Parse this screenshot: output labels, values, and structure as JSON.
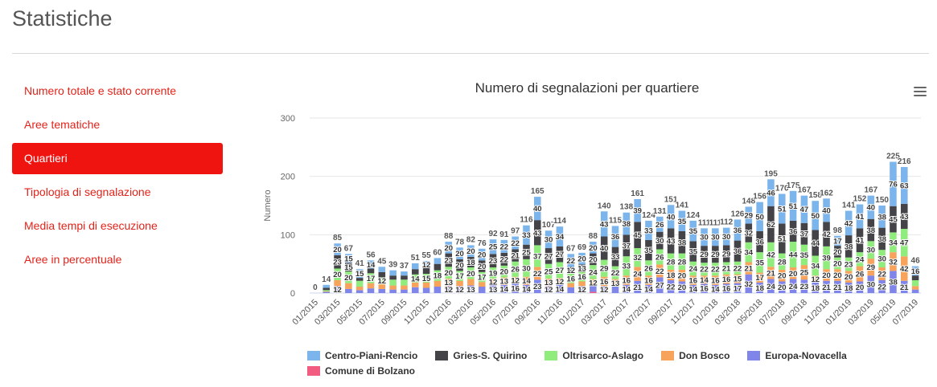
{
  "page": {
    "title": "Statistiche"
  },
  "sidebar": {
    "items": [
      {
        "label": "Numero totale e stato corrente",
        "active": false
      },
      {
        "label": "Aree tematiche",
        "active": false
      },
      {
        "label": "Quartieri",
        "active": true
      },
      {
        "label": "Tipologia di segnalazione",
        "active": false
      },
      {
        "label": "Media tempi di esecuzione",
        "active": false
      },
      {
        "label": "Aree in percentuale",
        "active": false
      }
    ]
  },
  "colors": {
    "accent": "#e2231a",
    "active_bg": "#f01411",
    "series": [
      "#7cb5ec",
      "#434348",
      "#90ed7d",
      "#f7a35c",
      "#8085e9",
      "#f15c80"
    ]
  },
  "chart_data": {
    "type": "bar",
    "stacked": true,
    "title": "Numero di segnalazioni per quartiere",
    "ylabel": "Numero",
    "xlabel": "",
    "ylim": [
      0,
      300
    ],
    "yticks": [
      0,
      100,
      200,
      300
    ],
    "grid": true,
    "legend": "bottom",
    "menu_icon": "hamburger-menu-icon",
    "categories": [
      "01/2015",
      "02/2015",
      "03/2015",
      "04/2015",
      "05/2015",
      "06/2015",
      "07/2015",
      "08/2015",
      "09/2015",
      "10/2015",
      "11/2015",
      "12/2015",
      "01/2016",
      "02/2016",
      "03/2016",
      "04/2016",
      "05/2016",
      "06/2016",
      "07/2016",
      "08/2016",
      "09/2016",
      "10/2016",
      "11/2016",
      "12/2016",
      "01/2017",
      "02/2017",
      "03/2017",
      "04/2017",
      "05/2017",
      "06/2017",
      "07/2017",
      "08/2017",
      "09/2017",
      "10/2017",
      "11/2017",
      "12/2017",
      "01/2018",
      "02/2018",
      "03/2018",
      "04/2018",
      "05/2018",
      "06/2018",
      "07/2018",
      "08/2018",
      "09/2018",
      "10/2018",
      "11/2018",
      "12/2018",
      "01/2019",
      "02/2019",
      "03/2019",
      "04/2019",
      "05/2019",
      "06/2019",
      "07/2019"
    ],
    "xtick_labels": [
      "01/2015",
      "03/2015",
      "05/2015",
      "07/2015",
      "09/2015",
      "11/2015",
      "01/2016",
      "03/2016",
      "05/2016",
      "07/2016",
      "09/2016",
      "11/2016",
      "01/2017",
      "03/2017",
      "05/2017",
      "07/2017",
      "09/2017",
      "11/2017",
      "01/2018",
      "03/2018",
      "05/2018",
      "07/2018",
      "09/2018",
      "11/2018",
      "01/2019",
      "03/2019",
      "05/2019",
      "07/2019"
    ],
    "totals": [
      0,
      14,
      85,
      67,
      41,
      56,
      45,
      39,
      37,
      51,
      55,
      60,
      88,
      78,
      82,
      76,
      92,
      91,
      97,
      116,
      165,
      107,
      114,
      67,
      69,
      88,
      140,
      115,
      138,
      161,
      124,
      131,
      151,
      141,
      124,
      111,
      111,
      112,
      126,
      148,
      156,
      195,
      170,
      175,
      167,
      158,
      162,
      98,
      141,
      152,
      167,
      150,
      225,
      216,
      46
    ],
    "series": [
      {
        "name": "Centro-Piani-Rencio",
        "values": [
          0,
          5,
          20,
          15,
          15,
          14,
          9,
          9,
          7,
          10,
          12,
          10,
          20,
          20,
          20,
          20,
          25,
          22,
          22,
          33,
          40,
          30,
          34,
          22,
          20,
          20,
          43,
          36,
          38,
          39,
          33,
          26,
          40,
          35,
          35,
          30,
          30,
          30,
          36,
          29,
          50,
          46,
          51,
          51,
          47,
          50,
          40,
          17,
          42,
          41,
          40,
          38,
          76,
          63,
          16
        ]
      },
      {
        "name": "Gries-S. Quirino",
        "values": [
          0,
          4,
          23,
          15,
          5,
          8,
          9,
          7,
          7,
          9,
          10,
          11,
          23,
          20,
          18,
          20,
          23,
          22,
          21,
          25,
          43,
          27,
          27,
          12,
          13,
          20,
          40,
          33,
          37,
          45,
          35,
          30,
          43,
          38,
          35,
          29,
          29,
          29,
          36,
          32,
          36,
          62,
          51,
          36,
          37,
          44,
          42,
          20,
          38,
          41,
          38,
          38,
          45,
          43,
          8
        ]
      },
      {
        "name": "Oltrisarco-Aslago",
        "values": [
          0,
          2,
          20,
          20,
          10,
          17,
          12,
          10,
          10,
          14,
          15,
          18,
          20,
          17,
          20,
          17,
          19,
          20,
          26,
          30,
          37,
          25,
          27,
          16,
          16,
          24,
          29,
          22,
          33,
          32,
          26,
          26,
          28,
          28,
          24,
          22,
          22,
          21,
          22,
          34,
          35,
          42,
          28,
          44,
          35,
          34,
          39,
          20,
          23,
          24,
          30,
          30,
          34,
          47,
          10
        ]
      },
      {
        "name": "Don Bosco",
        "values": [
          0,
          1,
          10,
          10,
          6,
          9,
          8,
          7,
          7,
          8,
          9,
          10,
          13,
          9,
          11,
          8,
          12,
          13,
          12,
          14,
          22,
          13,
          12,
          7,
          8,
          12,
          16,
          13,
          16,
          24,
          16,
          22,
          18,
          20,
          16,
          14,
          16,
          16,
          15,
          21,
          17,
          21,
          20,
          20,
          25,
          12,
          20,
          20,
          20,
          26,
          29,
          22,
          32,
          42,
          6
        ]
      },
      {
        "name": "Europa-Novacella",
        "values": [
          0,
          2,
          12,
          7,
          5,
          8,
          7,
          6,
          6,
          10,
          9,
          11,
          12,
          12,
          13,
          11,
          13,
          14,
          16,
          14,
          23,
          12,
          14,
          10,
          12,
          10,
          12,
          11,
          14,
          21,
          14,
          27,
          22,
          20,
          14,
          16,
          14,
          16,
          17,
          32,
          18,
          24,
          20,
          24,
          23,
          18,
          21,
          21,
          18,
          20,
          30,
          22,
          38,
          21,
          6
        ]
      },
      {
        "name": "Comune di Bolzano",
        "values": [
          0,
          0,
          0,
          0,
          0,
          0,
          0,
          0,
          0,
          0,
          0,
          0,
          0,
          0,
          0,
          0,
          0,
          0,
          0,
          0,
          0,
          0,
          0,
          0,
          0,
          2,
          0,
          0,
          0,
          0,
          0,
          0,
          0,
          0,
          0,
          0,
          0,
          0,
          0,
          0,
          0,
          0,
          0,
          0,
          0,
          0,
          0,
          0,
          0,
          0,
          0,
          0,
          0,
          0,
          0
        ]
      }
    ]
  }
}
